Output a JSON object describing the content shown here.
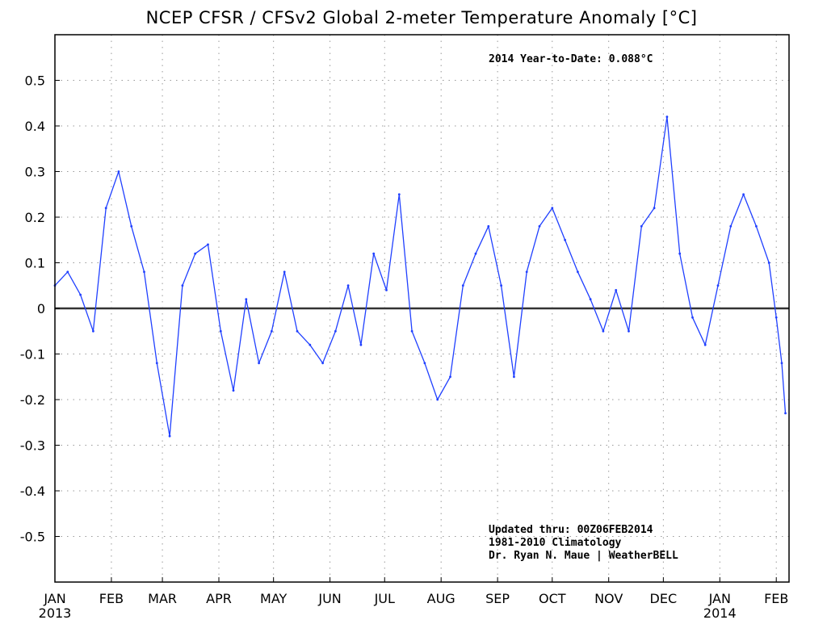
{
  "chart_data": {
    "type": "line",
    "title": "NCEP CFSR / CFSv2 Global 2-meter Temperature Anomaly [°C]",
    "xlabel": "",
    "ylabel": "",
    "ylim": [
      -0.6,
      0.6
    ],
    "y_ticks": [
      "0.5",
      "0.4",
      "0.3",
      "0.2",
      "0.1",
      "0",
      "-0.1",
      "-0.2",
      "-0.3",
      "-0.4",
      "-0.5"
    ],
    "x_ticks": [
      {
        "label": "JAN",
        "year": "2013"
      },
      {
        "label": "FEB",
        "year": ""
      },
      {
        "label": "MAR",
        "year": ""
      },
      {
        "label": "APR",
        "year": ""
      },
      {
        "label": "MAY",
        "year": ""
      },
      {
        "label": "JUN",
        "year": ""
      },
      {
        "label": "JUL",
        "year": ""
      },
      {
        "label": "AUG",
        "year": ""
      },
      {
        "label": "SEP",
        "year": ""
      },
      {
        "label": "OCT",
        "year": ""
      },
      {
        "label": "NOV",
        "year": ""
      },
      {
        "label": "DEC",
        "year": ""
      },
      {
        "label": "JAN",
        "year": "2014"
      },
      {
        "label": "FEB",
        "year": ""
      }
    ],
    "grid": true,
    "line_color": "#2040ff",
    "zero_line_color": "#333333",
    "annotations": {
      "ytd": "2014 Year-to-Date: 0.088°C",
      "updated": "Updated thru: 00Z06FEB2014",
      "climatology": "1981-2010 Climatology",
      "credit": "Dr. Ryan N. Maue | WeatherBELL"
    },
    "series": [
      {
        "x": [
          "2013-01-01",
          "2013-01-08",
          "2013-01-15",
          "2013-01-22",
          "2013-01-29",
          "2013-02-05",
          "2013-02-12",
          "2013-02-19",
          "2013-02-26",
          "2013-03-05",
          "2013-03-12",
          "2013-03-19",
          "2013-03-26",
          "2013-04-02",
          "2013-04-09",
          "2013-04-16",
          "2013-04-23",
          "2013-04-30",
          "2013-05-07",
          "2013-05-14",
          "2013-05-21",
          "2013-05-28",
          "2013-06-04",
          "2013-06-11",
          "2013-06-18",
          "2013-06-25",
          "2013-07-02",
          "2013-07-09",
          "2013-07-16",
          "2013-07-23",
          "2013-07-30",
          "2013-08-06",
          "2013-08-13",
          "2013-08-20",
          "2013-08-27",
          "2013-09-03",
          "2013-09-10",
          "2013-09-17",
          "2013-09-24",
          "2013-10-01",
          "2013-10-08",
          "2013-10-15",
          "2013-10-22",
          "2013-10-29",
          "2013-11-05",
          "2013-11-12",
          "2013-11-19",
          "2013-11-26",
          "2013-12-03",
          "2013-12-10",
          "2013-12-17",
          "2013-12-24",
          "2013-12-31",
          "2014-01-07",
          "2014-01-14",
          "2014-01-21",
          "2014-01-28",
          "2014-02-01",
          "2014-02-04",
          "2014-02-06"
        ],
        "values": [
          0.05,
          0.08,
          0.03,
          -0.05,
          0.22,
          0.3,
          0.18,
          0.08,
          -0.12,
          -0.28,
          0.05,
          0.12,
          0.14,
          -0.05,
          -0.18,
          0.02,
          -0.12,
          -0.05,
          0.08,
          -0.05,
          -0.08,
          -0.12,
          -0.05,
          0.05,
          -0.08,
          0.12,
          0.04,
          0.25,
          -0.05,
          -0.12,
          -0.2,
          -0.15,
          0.05,
          0.12,
          0.18,
          0.05,
          -0.15,
          0.08,
          0.18,
          0.22,
          0.15,
          0.08,
          0.02,
          -0.05,
          0.04,
          -0.05,
          0.18,
          0.22,
          0.42,
          0.12,
          -0.02,
          -0.08,
          0.05,
          0.18,
          0.25,
          0.18,
          0.1,
          -0.02,
          -0.12,
          -0.23
        ]
      }
    ]
  }
}
